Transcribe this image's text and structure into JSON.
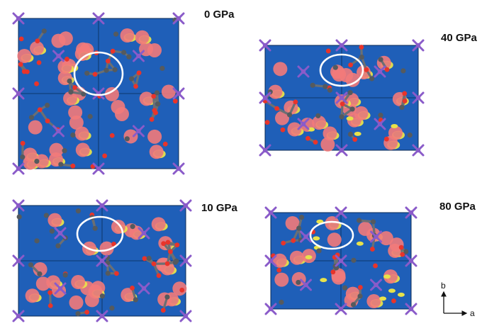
{
  "figure": {
    "panels": [
      {
        "id": "p0",
        "pressure_label": "0 GPa"
      },
      {
        "id": "p40",
        "pressure_label": "40 GPa"
      },
      {
        "id": "p10",
        "pressure_label": "10 GPa"
      },
      {
        "id": "p80",
        "pressure_label": "80 GPa"
      }
    ],
    "axes": {
      "b_label": "b",
      "a_label": "a"
    },
    "colors": {
      "background_field": "#1f5fb8",
      "low_density_yellow": "#e8e24a",
      "mid_density_green": "#3fbf7a",
      "high_density_pink": "#f27a7a",
      "oxygen_red": "#e8342a",
      "carbon_gray": "#555a5e",
      "metal_purple": "#8a5bc9",
      "highlight_ring": "#ffffff",
      "cell_edge": "#0a2a55"
    }
  }
}
